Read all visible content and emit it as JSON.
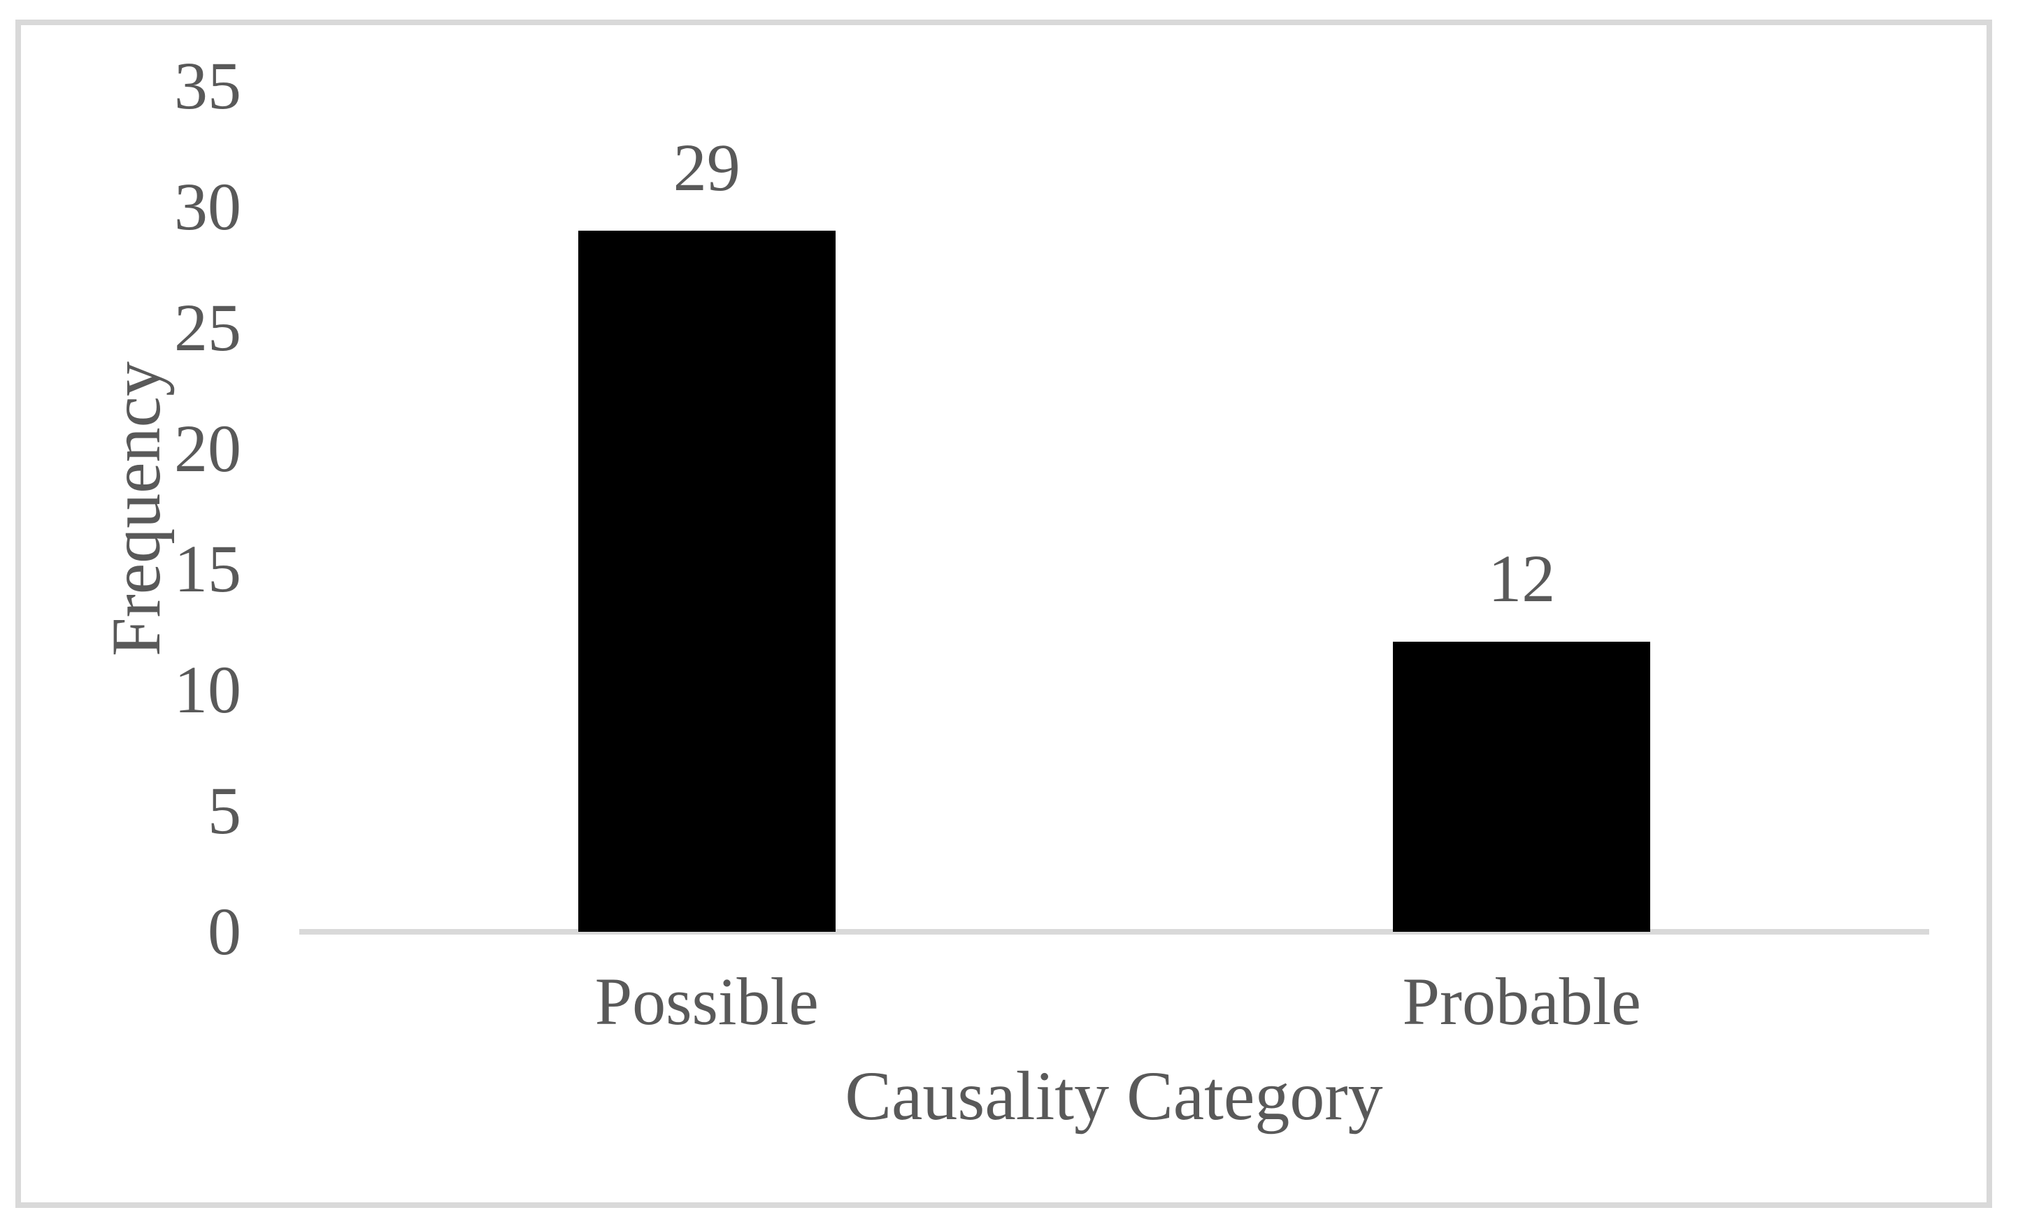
{
  "chart_data": {
    "type": "bar",
    "categories": [
      "Possible",
      "Probable"
    ],
    "values": [
      29,
      12
    ],
    "data_labels": [
      "29",
      "12"
    ],
    "title": "",
    "xlabel": "Causality Category",
    "ylabel": "Frequency",
    "ylim": [
      0,
      35
    ],
    "yticks": [
      0,
      5,
      10,
      15,
      20,
      25,
      30,
      35
    ],
    "grid": false,
    "legend_position": "none",
    "bar_color": "#000000",
    "text_color": "#595959",
    "axis_line_color": "#d9d9d9",
    "frame_border_color": "#d9d9d9",
    "background_color": "#ffffff"
  }
}
